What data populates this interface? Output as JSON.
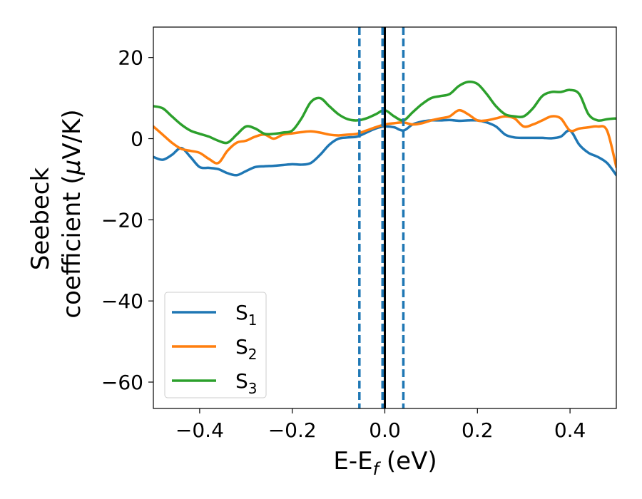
{
  "chart_data": {
    "type": "line",
    "xlabel": "E-E",
    "xlabel_subscript": "f",
    "xlabel_suffix": " (eV)",
    "ylabel_line1": "Seebeck",
    "ylabel_line2": "coefficient  (",
    "ylabel_mu": "μ",
    "ylabel_unit": "V/K)",
    "xlim": [
      -0.5,
      0.5
    ],
    "ylim": [
      -66.5,
      27.5
    ],
    "xticks": [
      -0.4,
      -0.2,
      0.0,
      0.2,
      0.4
    ],
    "xtick_labels": [
      "−0.4",
      "−0.2",
      "0.0",
      "0.2",
      "0.4"
    ],
    "yticks": [
      20,
      0,
      -20,
      -40,
      -60
    ],
    "ytick_labels": [
      "20",
      "0",
      "−20",
      "−40",
      "−60"
    ],
    "grid": false,
    "legend_placement": "lower-left",
    "vertical_lines": [
      {
        "x": -0.055,
        "style": "dashed",
        "color": "#1f77b4"
      },
      {
        "x": -0.005,
        "style": "dashed",
        "color": "#1f77b4"
      },
      {
        "x": 0.04,
        "style": "dashed",
        "color": "#1f77b4"
      },
      {
        "x": 0.0,
        "style": "solid",
        "color": "#000000"
      }
    ],
    "series": [
      {
        "name": "S",
        "subscript": "1",
        "color": "#1f77b4",
        "x": [
          -0.5,
          -0.48,
          -0.46,
          -0.44,
          -0.42,
          -0.4,
          -0.38,
          -0.36,
          -0.34,
          -0.32,
          -0.3,
          -0.28,
          -0.26,
          -0.24,
          -0.22,
          -0.2,
          -0.18,
          -0.16,
          -0.14,
          -0.12,
          -0.1,
          -0.08,
          -0.06,
          -0.04,
          -0.02,
          0.0,
          0.02,
          0.04,
          0.06,
          0.08,
          0.1,
          0.12,
          0.14,
          0.16,
          0.18,
          0.2,
          0.22,
          0.24,
          0.26,
          0.28,
          0.3,
          0.32,
          0.34,
          0.36,
          0.38,
          0.4,
          0.42,
          0.44,
          0.46,
          0.48,
          0.5
        ],
        "y": [
          -4.5,
          -5.2,
          -4.0,
          -2.3,
          -4.5,
          -7.0,
          -7.2,
          -7.5,
          -8.5,
          -9.0,
          -8.0,
          -7.0,
          -6.8,
          -6.7,
          -6.5,
          -6.3,
          -6.4,
          -6.0,
          -4.0,
          -1.5,
          0.0,
          0.3,
          0.5,
          1.5,
          2.5,
          3.0,
          2.8,
          2.0,
          3.5,
          4.2,
          4.5,
          4.5,
          4.6,
          4.4,
          4.5,
          4.5,
          4.0,
          3.0,
          1.0,
          0.3,
          0.2,
          0.2,
          0.2,
          0.1,
          0.5,
          2.0,
          -1.5,
          -3.5,
          -4.5,
          -6.0,
          -9.0
        ]
      },
      {
        "name": "S",
        "subscript": "2",
        "color": "#ff7f0e",
        "x": [
          -0.5,
          -0.48,
          -0.46,
          -0.44,
          -0.42,
          -0.4,
          -0.38,
          -0.36,
          -0.34,
          -0.32,
          -0.3,
          -0.28,
          -0.26,
          -0.24,
          -0.22,
          -0.2,
          -0.18,
          -0.16,
          -0.14,
          -0.12,
          -0.1,
          -0.08,
          -0.06,
          -0.04,
          -0.02,
          0.0,
          0.02,
          0.04,
          0.06,
          0.08,
          0.1,
          0.12,
          0.14,
          0.16,
          0.18,
          0.2,
          0.22,
          0.24,
          0.26,
          0.28,
          0.3,
          0.32,
          0.34,
          0.36,
          0.38,
          0.4,
          0.42,
          0.44,
          0.46,
          0.48,
          0.5
        ],
        "y": [
          3.0,
          1.0,
          -1.0,
          -2.5,
          -3.0,
          -3.5,
          -5.0,
          -6.0,
          -3.0,
          -1.0,
          -0.5,
          0.5,
          1.0,
          0.0,
          1.0,
          1.3,
          1.6,
          1.8,
          1.5,
          1.0,
          0.8,
          1.0,
          1.2,
          2.0,
          2.8,
          3.5,
          3.8,
          4.0,
          3.5,
          3.8,
          4.5,
          5.0,
          5.5,
          7.0,
          6.0,
          4.5,
          4.5,
          5.0,
          5.5,
          5.0,
          3.0,
          3.5,
          4.5,
          5.5,
          5.0,
          2.0,
          2.5,
          2.8,
          3.0,
          2.0,
          -7.0
        ]
      },
      {
        "name": "S",
        "subscript": "3",
        "color": "#2ca02c",
        "x": [
          -0.5,
          -0.48,
          -0.46,
          -0.44,
          -0.42,
          -0.4,
          -0.38,
          -0.36,
          -0.34,
          -0.32,
          -0.3,
          -0.28,
          -0.26,
          -0.24,
          -0.22,
          -0.2,
          -0.18,
          -0.16,
          -0.14,
          -0.12,
          -0.1,
          -0.08,
          -0.06,
          -0.04,
          -0.02,
          0.0,
          0.02,
          0.04,
          0.06,
          0.08,
          0.1,
          0.12,
          0.14,
          0.16,
          0.18,
          0.2,
          0.22,
          0.24,
          0.26,
          0.28,
          0.3,
          0.32,
          0.34,
          0.36,
          0.38,
          0.4,
          0.42,
          0.44,
          0.46,
          0.48,
          0.5
        ],
        "y": [
          8.0,
          7.5,
          5.5,
          3.5,
          2.0,
          1.2,
          0.5,
          -0.5,
          -1.0,
          1.0,
          3.0,
          2.5,
          1.2,
          1.2,
          1.5,
          2.0,
          5.0,
          9.0,
          10.0,
          8.0,
          6.0,
          4.8,
          4.5,
          5.0,
          6.0,
          7.0,
          5.5,
          4.5,
          6.5,
          8.5,
          10.0,
          10.5,
          11.0,
          13.0,
          14.0,
          13.5,
          11.0,
          8.0,
          6.0,
          5.5,
          5.5,
          7.5,
          10.5,
          11.5,
          11.5,
          12.0,
          11.0,
          6.0,
          4.5,
          4.8,
          5.0
        ]
      }
    ]
  }
}
